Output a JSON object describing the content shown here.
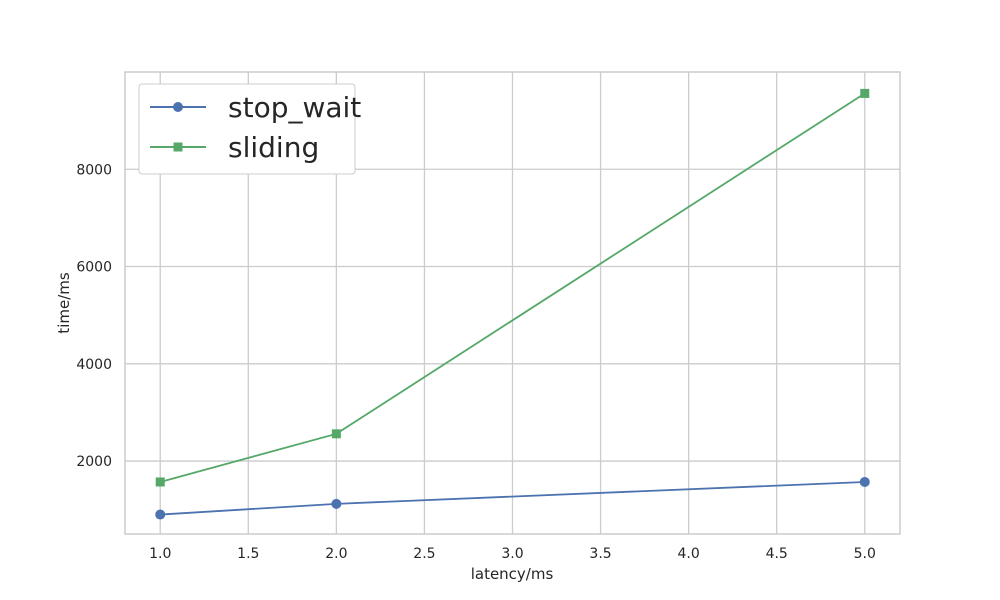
{
  "chart_data": {
    "type": "line",
    "title": "",
    "xlabel": "latency/ms",
    "ylabel": "time/ms",
    "xlim": [
      0.8,
      5.2
    ],
    "ylim": [
      500,
      10000
    ],
    "grid": true,
    "legend_position": "top-left",
    "x_ticks": [
      1.0,
      1.5,
      2.0,
      2.5,
      3.0,
      3.5,
      4.0,
      4.5,
      5.0
    ],
    "x_tick_labels": [
      "1.0",
      "1.5",
      "2.0",
      "2.5",
      "3.0",
      "3.5",
      "4.0",
      "4.5",
      "5.0"
    ],
    "y_ticks": [
      2000,
      4000,
      6000,
      8000
    ],
    "y_tick_labels": [
      "2000",
      "4000",
      "6000",
      "8000"
    ],
    "series": [
      {
        "name": "stop_wait",
        "color": "#4c72b0",
        "marker": "circle",
        "x": [
          1,
          2,
          5
        ],
        "y": [
          900,
          1120,
          1570
        ]
      },
      {
        "name": "sliding",
        "color": "#55a868",
        "marker": "square",
        "x": [
          1,
          2,
          5
        ],
        "y": [
          1570,
          2560,
          9560
        ]
      }
    ]
  }
}
